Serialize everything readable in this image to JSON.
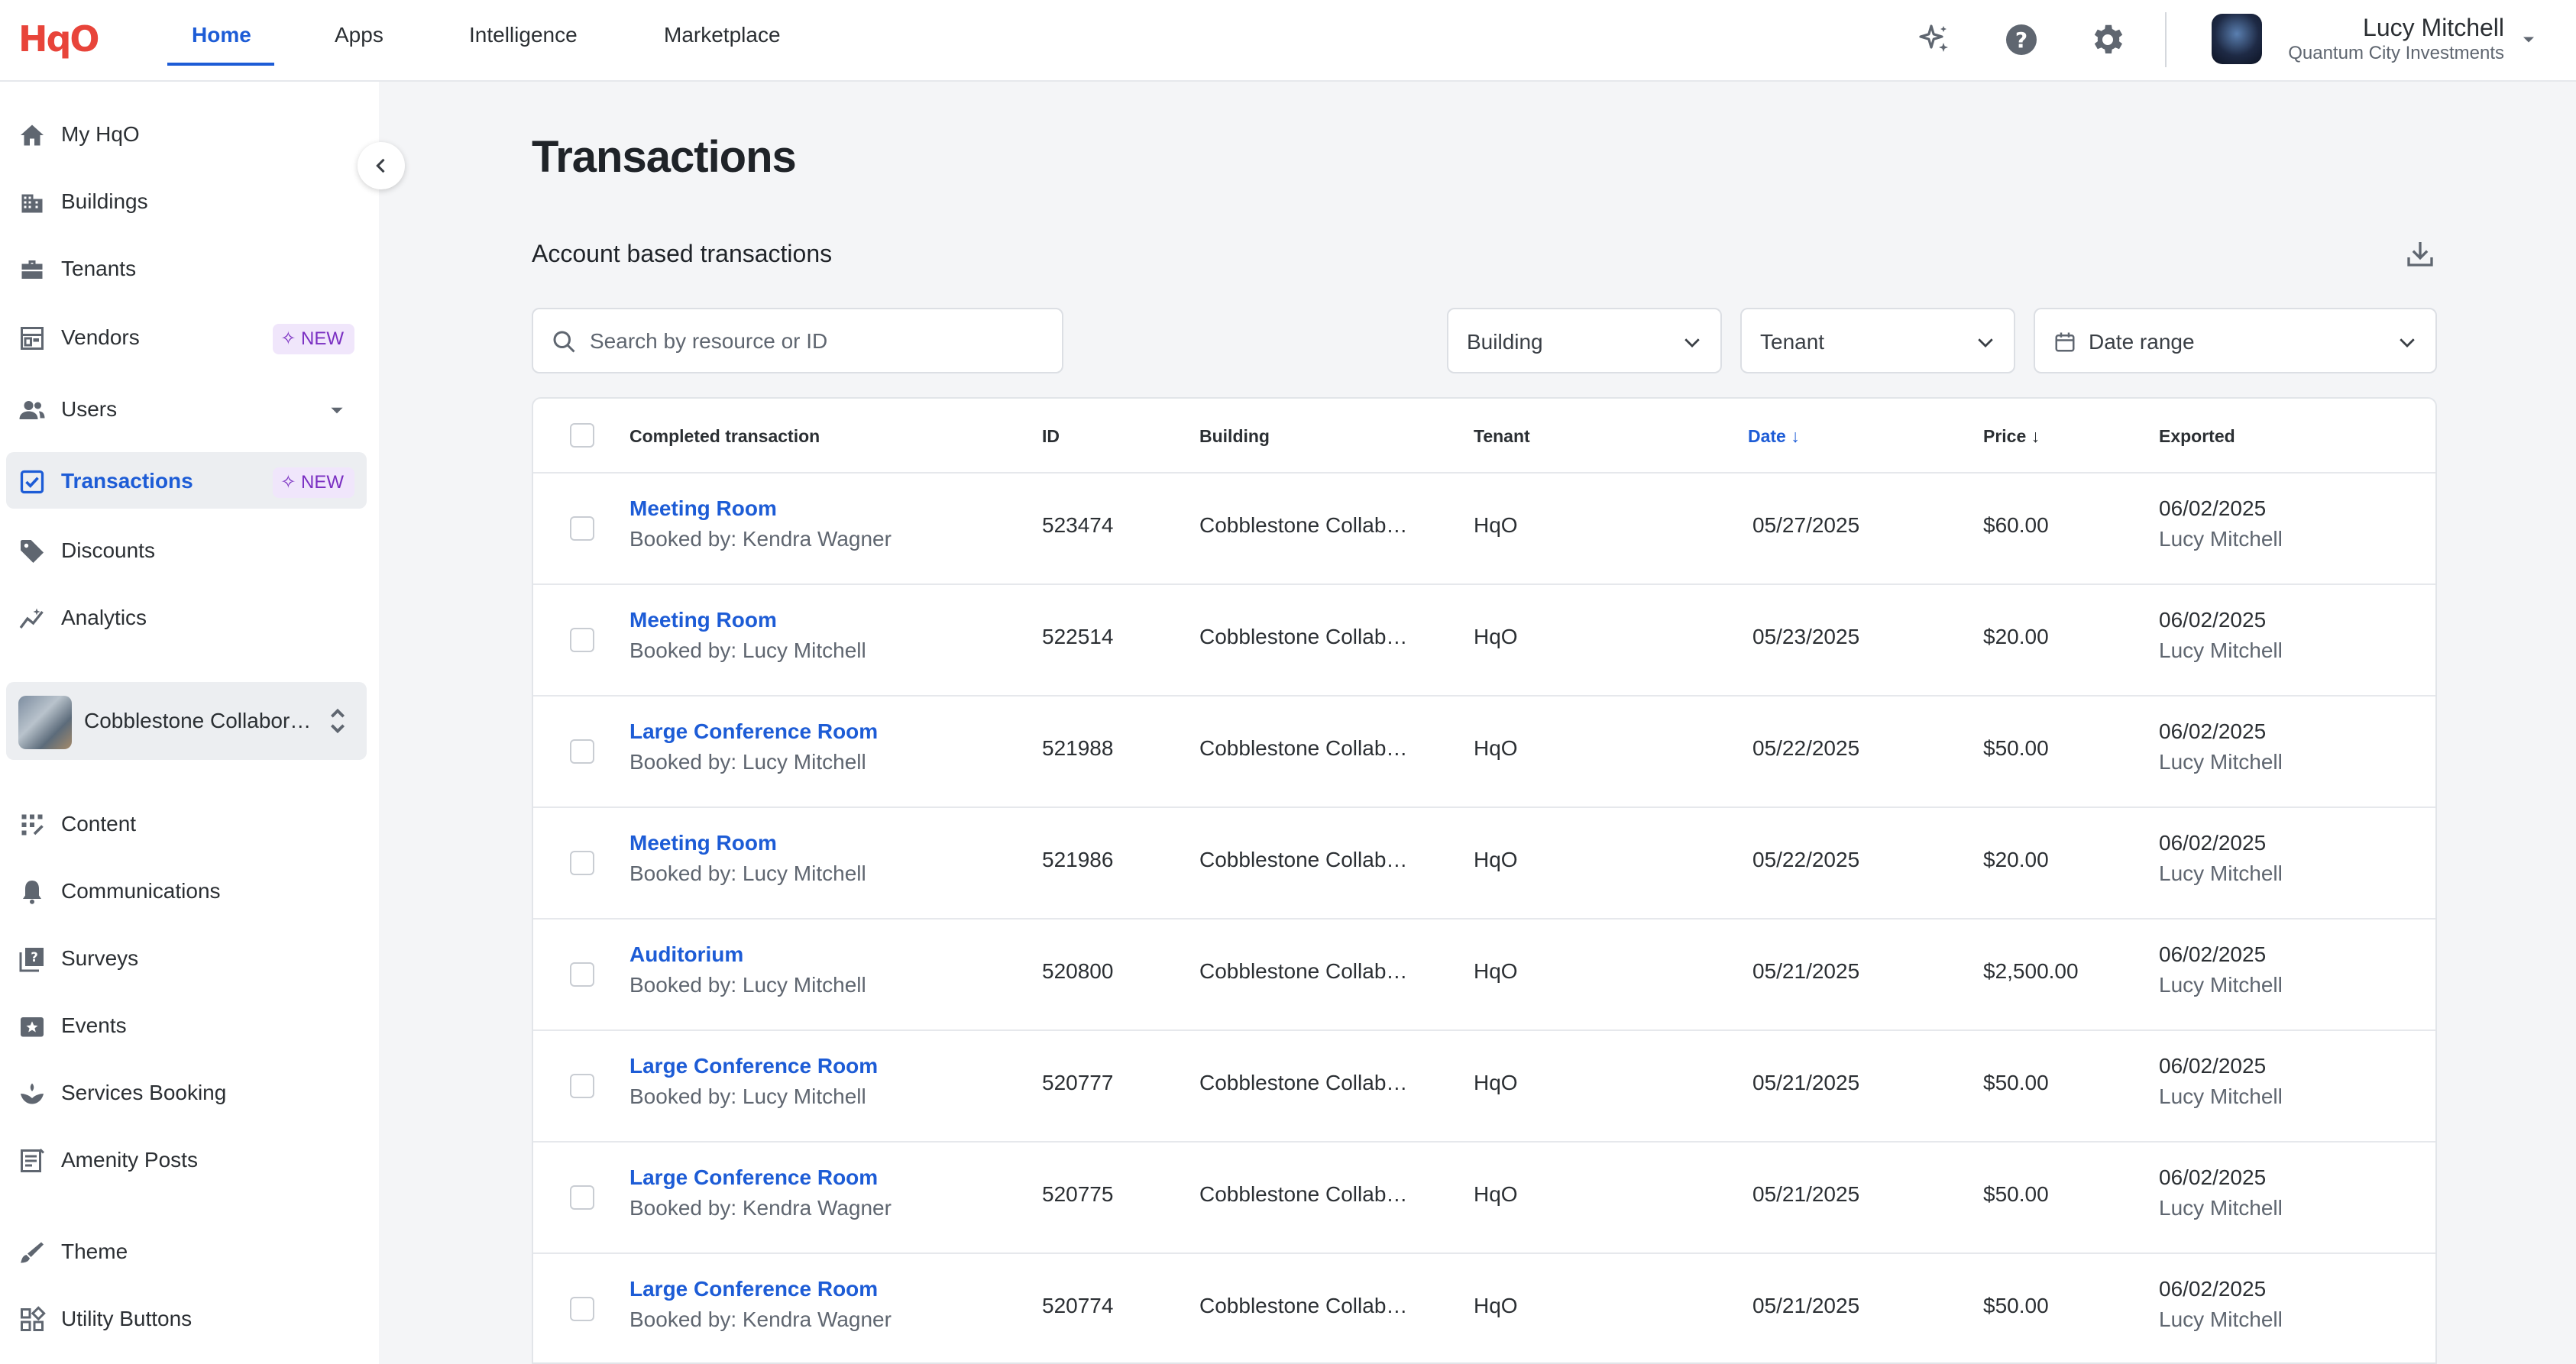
{
  "app": {
    "logo": "HqO"
  },
  "nav": {
    "tabs": [
      {
        "label": "Home",
        "active": true
      },
      {
        "label": "Apps"
      },
      {
        "label": "Intelligence"
      },
      {
        "label": "Marketplace"
      }
    ]
  },
  "user": {
    "name": "Lucy Mitchell",
    "org": "Quantum City Investments"
  },
  "icons": {
    "top": [
      "sparkle-icon",
      "help-icon",
      "gear-icon"
    ]
  },
  "sidebar": {
    "items": [
      {
        "label": "My HqO",
        "icon": "home-icon"
      },
      {
        "label": "Buildings",
        "icon": "building-icon"
      },
      {
        "label": "Tenants",
        "icon": "briefcase-icon"
      },
      {
        "label": "Vendors",
        "icon": "storefront-icon",
        "badge": "NEW"
      },
      {
        "label": "Users",
        "icon": "users-icon"
      },
      {
        "label": "Transactions",
        "icon": "receipt-check-icon",
        "badge": "NEW",
        "active": true
      },
      {
        "label": "Discounts",
        "icon": "tag-icon"
      },
      {
        "label": "Analytics",
        "icon": "analytics-icon"
      }
    ],
    "building_switcher": {
      "name": "Cobblestone Collaborative"
    },
    "items2": [
      {
        "label": "Content",
        "icon": "grid-icon"
      },
      {
        "label": "Communications",
        "icon": "bell-icon"
      },
      {
        "label": "Surveys",
        "icon": "survey-icon"
      },
      {
        "label": "Events",
        "icon": "star-calendar-icon"
      },
      {
        "label": "Services Booking",
        "icon": "hand-icon"
      },
      {
        "label": "Amenity Posts",
        "icon": "post-icon"
      },
      {
        "label": "Theme",
        "icon": "brush-icon"
      },
      {
        "label": "Utility Buttons",
        "icon": "widgets-icon"
      }
    ]
  },
  "page": {
    "title": "Transactions",
    "section": "Account based transactions"
  },
  "filters": {
    "search_placeholder": "Search by resource or ID",
    "building": "Building",
    "tenant": "Tenant",
    "date_range": "Date range"
  },
  "table": {
    "headers": {
      "resource": "Completed transaction",
      "id": "ID",
      "building": "Building",
      "tenant": "Tenant",
      "date": "Date",
      "price": "Price",
      "exported": "Exported"
    },
    "rows": [
      {
        "resource": "Meeting Room",
        "booked_by": "Booked by: Kendra Wagner",
        "id": "523474",
        "building": "Cobblestone Collab…",
        "tenant": "HqO",
        "date": "05/27/2025",
        "price": "$60.00",
        "exported_date": "06/02/2025",
        "exported_by": "Lucy Mitchell"
      },
      {
        "resource": "Meeting Room",
        "booked_by": "Booked by: Lucy Mitchell",
        "id": "522514",
        "building": "Cobblestone Collab…",
        "tenant": "HqO",
        "date": "05/23/2025",
        "price": "$20.00",
        "exported_date": "06/02/2025",
        "exported_by": "Lucy Mitchell"
      },
      {
        "resource": "Large Conference Room",
        "booked_by": "Booked by: Lucy Mitchell",
        "id": "521988",
        "building": "Cobblestone Collab…",
        "tenant": "HqO",
        "date": "05/22/2025",
        "price": "$50.00",
        "exported_date": "06/02/2025",
        "exported_by": "Lucy Mitchell"
      },
      {
        "resource": "Meeting Room",
        "booked_by": "Booked by: Lucy Mitchell",
        "id": "521986",
        "building": "Cobblestone Collab…",
        "tenant": "HqO",
        "date": "05/22/2025",
        "price": "$20.00",
        "exported_date": "06/02/2025",
        "exported_by": "Lucy Mitchell"
      },
      {
        "resource": "Auditorium",
        "booked_by": "Booked by: Lucy Mitchell",
        "id": "520800",
        "building": "Cobblestone Collab…",
        "tenant": "HqO",
        "date": "05/21/2025",
        "price": "$2,500.00",
        "exported_date": "06/02/2025",
        "exported_by": "Lucy Mitchell"
      },
      {
        "resource": "Large Conference Room",
        "booked_by": "Booked by: Lucy Mitchell",
        "id": "520777",
        "building": "Cobblestone Collab…",
        "tenant": "HqO",
        "date": "05/21/2025",
        "price": "$50.00",
        "exported_date": "06/02/2025",
        "exported_by": "Lucy Mitchell"
      },
      {
        "resource": "Large Conference Room",
        "booked_by": "Booked by: Kendra Wagner",
        "id": "520775",
        "building": "Cobblestone Collab…",
        "tenant": "HqO",
        "date": "05/21/2025",
        "price": "$50.00",
        "exported_date": "06/02/2025",
        "exported_by": "Lucy Mitchell"
      },
      {
        "resource": "Large Conference Room",
        "booked_by": "Booked by: Kendra Wagner",
        "id": "520774",
        "building": "Cobblestone Collab…",
        "tenant": "HqO",
        "date": "05/21/2025",
        "price": "$50.00",
        "exported_date": "06/02/2025",
        "exported_by": "Lucy Mitchell"
      }
    ]
  },
  "colors": {
    "accent": "#1d5cd6",
    "brand": "#e8443a",
    "badge": "#7a2fc2"
  }
}
